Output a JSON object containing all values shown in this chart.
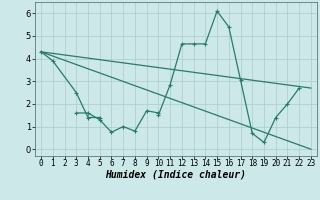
{
  "xlabel": "Humidex (Indice chaleur)",
  "series1_x": [
    0,
    1,
    3,
    4,
    5
  ],
  "series1_y": [
    4.3,
    3.9,
    2.5,
    1.4,
    1.4
  ],
  "series2_x": [
    3,
    4,
    5,
    6,
    7,
    8,
    9,
    10
  ],
  "series2_y": [
    1.6,
    1.6,
    1.3,
    0.75,
    1.0,
    0.8,
    1.7,
    1.6
  ],
  "series3_x": [
    10,
    11,
    12,
    13,
    14,
    15,
    16,
    17,
    18,
    19,
    20,
    21,
    22
  ],
  "series3_y": [
    1.5,
    2.85,
    4.65,
    4.65,
    4.65,
    6.1,
    5.4,
    3.05,
    0.7,
    0.3,
    1.4,
    2.0,
    2.7
  ],
  "regline1": [
    [
      0,
      4.3
    ],
    [
      23,
      2.7
    ]
  ],
  "regline2": [
    [
      0,
      4.3
    ],
    [
      23,
      0.0
    ]
  ],
  "line_color": "#2a7a6a",
  "bg_color": "#cce8e8",
  "grid_color": "#aacccc",
  "xlim": [
    -0.5,
    23.5
  ],
  "ylim": [
    -0.3,
    6.5
  ],
  "yticks": [
    0,
    1,
    2,
    3,
    4,
    5,
    6
  ],
  "xticks": [
    0,
    1,
    2,
    3,
    4,
    5,
    6,
    7,
    8,
    9,
    10,
    11,
    12,
    13,
    14,
    15,
    16,
    17,
    18,
    19,
    20,
    21,
    22,
    23
  ],
  "tick_fontsize": 5.5,
  "xlabel_fontsize": 7.0,
  "lw": 0.9,
  "ms": 3.0
}
